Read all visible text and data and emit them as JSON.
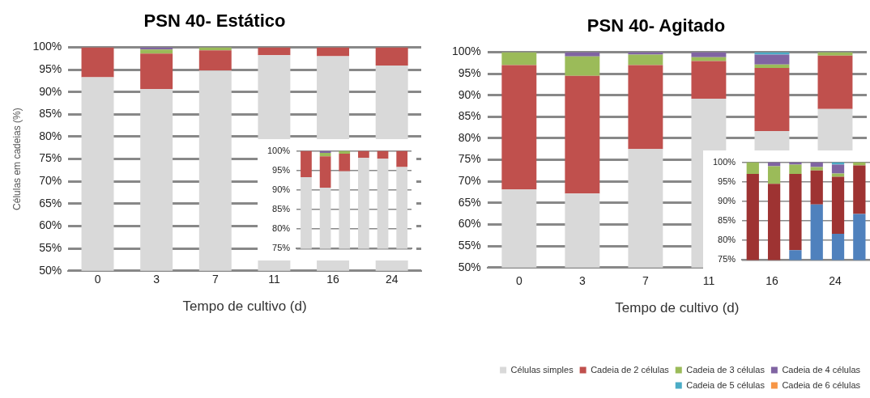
{
  "chart_data": [
    {
      "type": "bar",
      "title": "PSN 40- Estático",
      "xlabel": "Tempo de cultivo (d)",
      "ylabel": "Células em cadeias (%)",
      "categories": [
        "0",
        "3",
        "7",
        "11",
        "16",
        "24"
      ],
      "stacked": true,
      "ylim": [
        50,
        100
      ],
      "yticks": [
        {
          "value": 50,
          "label": "50%"
        },
        {
          "value": 55,
          "label": "55%"
        },
        {
          "value": 60,
          "label": "60%"
        },
        {
          "value": 65,
          "label": "65%"
        },
        {
          "value": 70,
          "label": "70%"
        },
        {
          "value": 75,
          "label": "75%"
        },
        {
          "value": 80,
          "label": "80%"
        },
        {
          "value": 85,
          "label": "85%"
        },
        {
          "value": 90,
          "label": "90%"
        },
        {
          "value": 95,
          "label": "95%"
        },
        {
          "value": 100,
          "label": "100%"
        }
      ],
      "grid": "y",
      "legend": false,
      "series": [
        {
          "color": "#d9d9d9",
          "values": [
            93.3,
            90.6,
            94.8,
            98.2,
            98.0,
            95.9
          ]
        },
        {
          "color": "#c0504d",
          "values": [
            6.7,
            8.0,
            4.5,
            1.8,
            2.0,
            4.1
          ],
          "base": [
            93.3,
            90.6,
            94.8,
            98.2,
            98.0,
            95.9
          ]
        },
        {
          "color": "#9bbb59",
          "values": [
            null,
            0.9,
            0.7,
            null,
            null,
            null
          ],
          "base": [
            null,
            98.6,
            99.3,
            null,
            null,
            null
          ]
        },
        {
          "color": "#8064a2",
          "values": [
            null,
            0.5,
            null,
            null,
            null,
            null
          ],
          "base": [
            null,
            99.5,
            null,
            null,
            null,
            null
          ]
        }
      ]
    },
    {
      "type": "bar",
      "categories": [
        null,
        null,
        null,
        null,
        null,
        null
      ],
      "stacked": true,
      "ylim": [
        75,
        100
      ],
      "yticks": [
        {
          "value": 75,
          "label": "75%"
        },
        {
          "value": 80,
          "label": "80%"
        },
        {
          "value": 85,
          "label": "85%"
        },
        {
          "value": 90,
          "label": "90%"
        },
        {
          "value": 95,
          "label": "95%"
        },
        {
          "value": 100,
          "label": "100%"
        }
      ],
      "grid": "y",
      "legend": false,
      "tick_labels": "y",
      "series": [
        {
          "color": "#d9d9d9",
          "values": [
            93.3,
            90.6,
            94.8,
            98.2,
            98.0,
            95.9
          ]
        },
        {
          "color": "#c0504d",
          "values": [
            6.7,
            8.0,
            4.5,
            1.8,
            2.0,
            4.1
          ],
          "base": [
            93.3,
            90.6,
            94.8,
            98.2,
            98.0,
            95.9
          ]
        },
        {
          "color": "#9bbb59",
          "values": [
            null,
            0.9,
            0.7,
            null,
            null,
            null
          ],
          "base": [
            null,
            98.6,
            99.3,
            null,
            null,
            null
          ]
        },
        {
          "color": "#8064a2",
          "values": [
            null,
            0.5,
            null,
            null,
            null,
            null
          ],
          "base": [
            null,
            99.5,
            null,
            null,
            null,
            null
          ]
        }
      ]
    },
    {
      "type": "bar",
      "title": "PSN 40- Agitado",
      "xlabel": "Tempo de cultivo (d)",
      "categories": [
        "0",
        "3",
        "7",
        "11",
        "16",
        "24"
      ],
      "stacked": true,
      "ylim": [
        50,
        100
      ],
      "yticks": [
        {
          "value": 50,
          "label": "50%"
        },
        {
          "value": 55,
          "label": "55%"
        },
        {
          "value": 60,
          "label": "60%"
        },
        {
          "value": 65,
          "label": "65%"
        },
        {
          "value": 70,
          "label": "70%"
        },
        {
          "value": 75,
          "label": "75%"
        },
        {
          "value": 80,
          "label": "80%"
        },
        {
          "value": 85,
          "label": "85%"
        },
        {
          "value": 90,
          "label": "90%"
        },
        {
          "value": 95,
          "label": "95%"
        },
        {
          "value": 100,
          "label": "100%"
        }
      ],
      "grid": "y",
      "legend": "bottom right",
      "series": [
        {
          "name": "Células simples",
          "color": "#d9d9d9",
          "values": [
            68.1,
            67.2,
            77.5,
            89.2,
            81.7,
            86.8
          ]
        },
        {
          "name": "Cadeia de 2 células",
          "color": "#c0504d",
          "values": [
            28.9,
            27.3,
            19.5,
            8.7,
            14.6,
            12.4
          ],
          "base": [
            68.1,
            67.2,
            77.5,
            89.2,
            81.7,
            86.8
          ]
        },
        {
          "name": "Cadeia de 3 células",
          "color": "#9bbb59",
          "values": [
            3.0,
            4.5,
            2.4,
            0.9,
            0.8,
            0.8
          ],
          "base": [
            97.0,
            94.5,
            97.0,
            97.9,
            96.3,
            99.2
          ]
        },
        {
          "name": "Cadeia de 4 células",
          "color": "#8064a2",
          "values": [
            null,
            1.0,
            0.6,
            1.2,
            2.3,
            null
          ],
          "base": [
            null,
            99.0,
            99.4,
            98.8,
            97.1,
            null
          ]
        },
        {
          "name": "Cadeia de 5 células",
          "color": "#4bacc6",
          "values": [
            null,
            null,
            null,
            null,
            0.6,
            null
          ],
          "base": [
            null,
            null,
            null,
            null,
            99.4,
            null
          ]
        },
        {
          "name": "Cadeia de 6 células",
          "color": "#f79646",
          "values": [
            null,
            null,
            null,
            null,
            null,
            null
          ]
        }
      ]
    },
    {
      "type": "bar",
      "categories": [
        null,
        null,
        null,
        null,
        null,
        null
      ],
      "stacked": true,
      "ylim": [
        75,
        100
      ],
      "yticks": [
        {
          "value": 75,
          "label": "75%"
        },
        {
          "value": 80,
          "label": "80%"
        },
        {
          "value": 85,
          "label": "85%"
        },
        {
          "value": 90,
          "label": "90%"
        },
        {
          "value": 95,
          "label": "95%"
        },
        {
          "value": 100,
          "label": "100%"
        }
      ],
      "grid": "y",
      "legend": false,
      "tick_labels": "y",
      "series": [
        {
          "color": "#4f81bd",
          "values": [
            null,
            null,
            77.5,
            89.2,
            81.7,
            86.8
          ]
        },
        {
          "color": "#9e3332",
          "values": [
            28.9,
            27.3,
            19.5,
            8.7,
            14.6,
            12.4
          ],
          "base": [
            68.1,
            67.2,
            77.5,
            89.2,
            81.7,
            86.8
          ]
        },
        {
          "color": "#9bbb59",
          "values": [
            3.0,
            4.5,
            2.4,
            0.9,
            0.8,
            0.8
          ],
          "base": [
            97.0,
            94.5,
            97.0,
            97.9,
            96.3,
            99.2
          ]
        },
        {
          "color": "#8064a2",
          "values": [
            null,
            1.0,
            0.6,
            1.2,
            2.3,
            null
          ],
          "base": [
            null,
            99.0,
            99.4,
            98.8,
            97.1,
            null
          ]
        },
        {
          "color": "#4bacc6",
          "values": [
            null,
            null,
            null,
            null,
            0.6,
            null
          ],
          "base": [
            null,
            null,
            null,
            null,
            99.4,
            null
          ]
        }
      ]
    }
  ]
}
